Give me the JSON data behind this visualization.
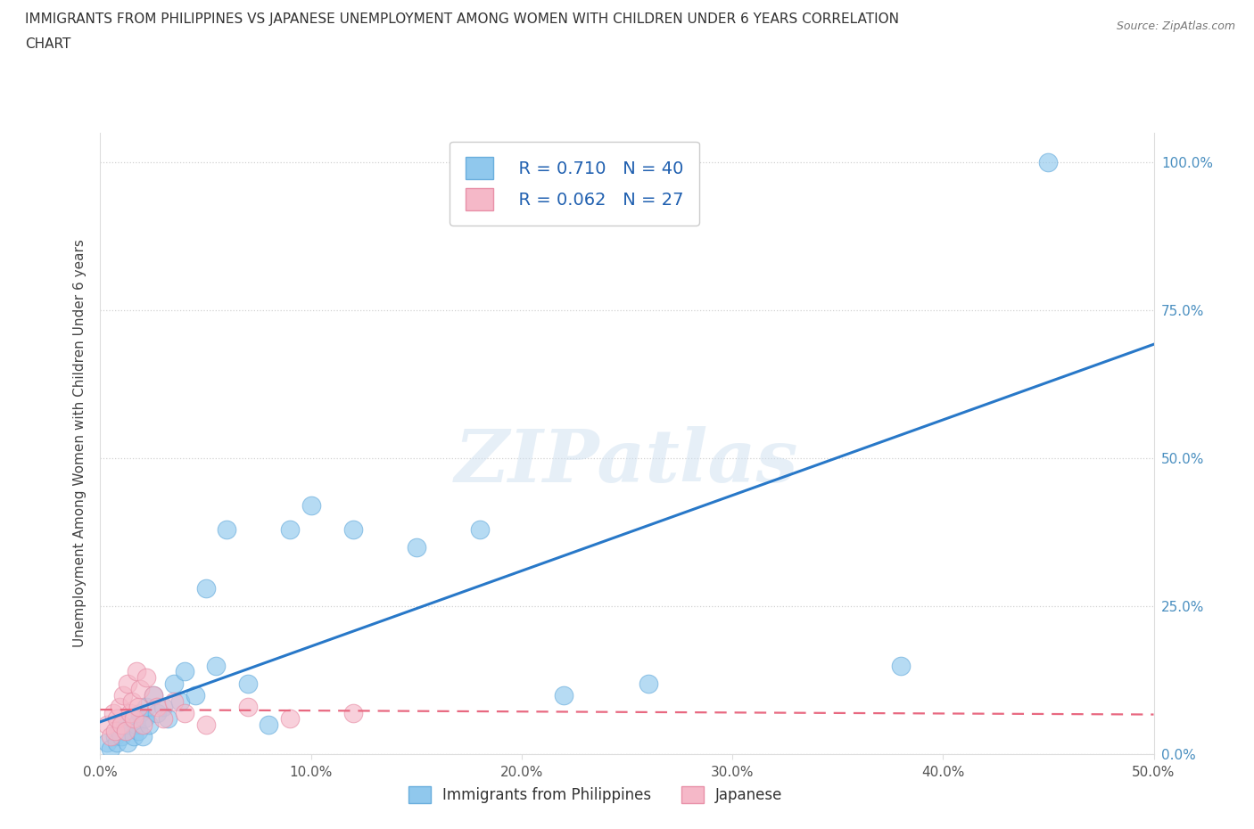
{
  "title_line1": "IMMIGRANTS FROM PHILIPPINES VS JAPANESE UNEMPLOYMENT AMONG WOMEN WITH CHILDREN UNDER 6 YEARS CORRELATION",
  "title_line2": "CHART",
  "source": "Source: ZipAtlas.com",
  "ylabel": "Unemployment Among Women with Children Under 6 years",
  "xlim": [
    0.0,
    0.5
  ],
  "ylim": [
    0.0,
    1.05
  ],
  "yticks": [
    0.0,
    0.25,
    0.5,
    0.75,
    1.0
  ],
  "ytick_labels": [
    "0.0%",
    "25.0%",
    "50.0%",
    "75.0%",
    "100.0%"
  ],
  "xticks": [
    0.0,
    0.1,
    0.2,
    0.3,
    0.4,
    0.5
  ],
  "xtick_labels": [
    "0.0%",
    "10.0%",
    "20.0%",
    "30.0%",
    "40.0%",
    "50.0%"
  ],
  "philippines_color": "#90c8ed",
  "japanese_color": "#f5b8c8",
  "philippines_edge": "#6aaedd",
  "japanese_edge": "#e890a8",
  "regression_philippines_color": "#2878c8",
  "regression_japanese_color": "#e86880",
  "legend_r_philippines": "R = 0.710",
  "legend_n_philippines": "N = 40",
  "legend_r_japanese": "R = 0.062",
  "legend_n_japanese": "N = 27",
  "watermark_text": "ZIPatlas",
  "philippines_x": [
    0.003,
    0.005,
    0.007,
    0.008,
    0.009,
    0.01,
    0.01,
    0.012,
    0.013,
    0.015,
    0.016,
    0.017,
    0.018,
    0.019,
    0.02,
    0.021,
    0.022,
    0.023,
    0.025,
    0.027,
    0.03,
    0.032,
    0.035,
    0.038,
    0.04,
    0.045,
    0.05,
    0.055,
    0.06,
    0.07,
    0.08,
    0.09,
    0.1,
    0.12,
    0.15,
    0.18,
    0.22,
    0.26,
    0.38,
    0.45
  ],
  "philippines_y": [
    0.02,
    0.01,
    0.03,
    0.02,
    0.04,
    0.03,
    0.05,
    0.04,
    0.02,
    0.06,
    0.03,
    0.05,
    0.04,
    0.07,
    0.03,
    0.06,
    0.08,
    0.05,
    0.1,
    0.07,
    0.08,
    0.06,
    0.12,
    0.09,
    0.14,
    0.1,
    0.28,
    0.15,
    0.38,
    0.12,
    0.05,
    0.38,
    0.42,
    0.38,
    0.35,
    0.38,
    0.1,
    0.12,
    0.15,
    1.0
  ],
  "japanese_x": [
    0.003,
    0.005,
    0.006,
    0.007,
    0.008,
    0.009,
    0.01,
    0.011,
    0.012,
    0.013,
    0.014,
    0.015,
    0.016,
    0.017,
    0.018,
    0.019,
    0.02,
    0.022,
    0.025,
    0.027,
    0.03,
    0.035,
    0.04,
    0.05,
    0.07,
    0.09,
    0.12
  ],
  "japanese_y": [
    0.05,
    0.03,
    0.07,
    0.04,
    0.06,
    0.08,
    0.05,
    0.1,
    0.04,
    0.12,
    0.07,
    0.09,
    0.06,
    0.14,
    0.08,
    0.11,
    0.05,
    0.13,
    0.1,
    0.08,
    0.06,
    0.09,
    0.07,
    0.05,
    0.08,
    0.06,
    0.07
  ]
}
